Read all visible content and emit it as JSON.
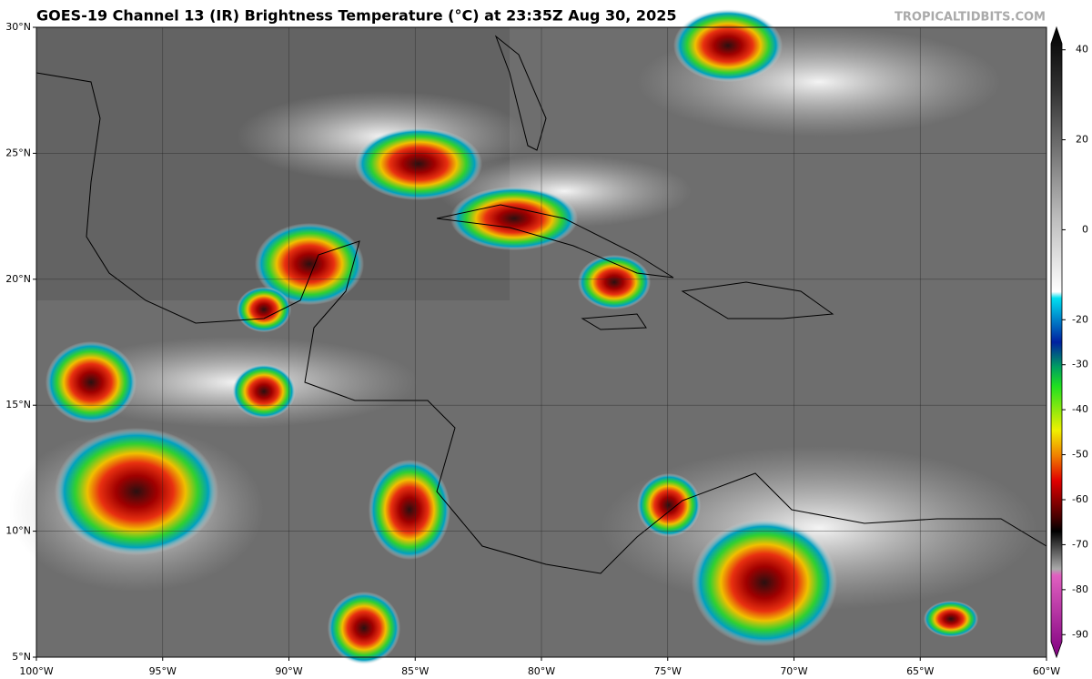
{
  "header": {
    "title": "GOES-19 Channel 13 (IR) Brightness Temperature (°C) at 23:35Z Aug 30, 2025",
    "credit": "TROPICALTIDBITS.COM"
  },
  "map": {
    "xlim": [
      -100,
      -60
    ],
    "ylim": [
      5,
      30
    ],
    "xticks": [
      {
        "value": -100,
        "label": "100°W"
      },
      {
        "value": -95,
        "label": "95°W"
      },
      {
        "value": -90,
        "label": "90°W"
      },
      {
        "value": -85,
        "label": "85°W"
      },
      {
        "value": -80,
        "label": "80°W"
      },
      {
        "value": -75,
        "label": "75°W"
      },
      {
        "value": -70,
        "label": "70°W"
      },
      {
        "value": -65,
        "label": "65°W"
      },
      {
        "value": -60,
        "label": "60°W"
      }
    ],
    "yticks": [
      {
        "value": 5,
        "label": "5°N"
      },
      {
        "value": 10,
        "label": "10°N"
      },
      {
        "value": 15,
        "label": "15°N"
      },
      {
        "value": 20,
        "label": "20°N"
      },
      {
        "value": 25,
        "label": "25°N"
      },
      {
        "value": 30,
        "label": "30°N"
      }
    ]
  },
  "colorbar": {
    "lim": [
      -95,
      45
    ],
    "ticks": [
      40,
      20,
      0,
      -20,
      -30,
      -40,
      -50,
      -60,
      -70,
      -80,
      -90
    ]
  }
}
